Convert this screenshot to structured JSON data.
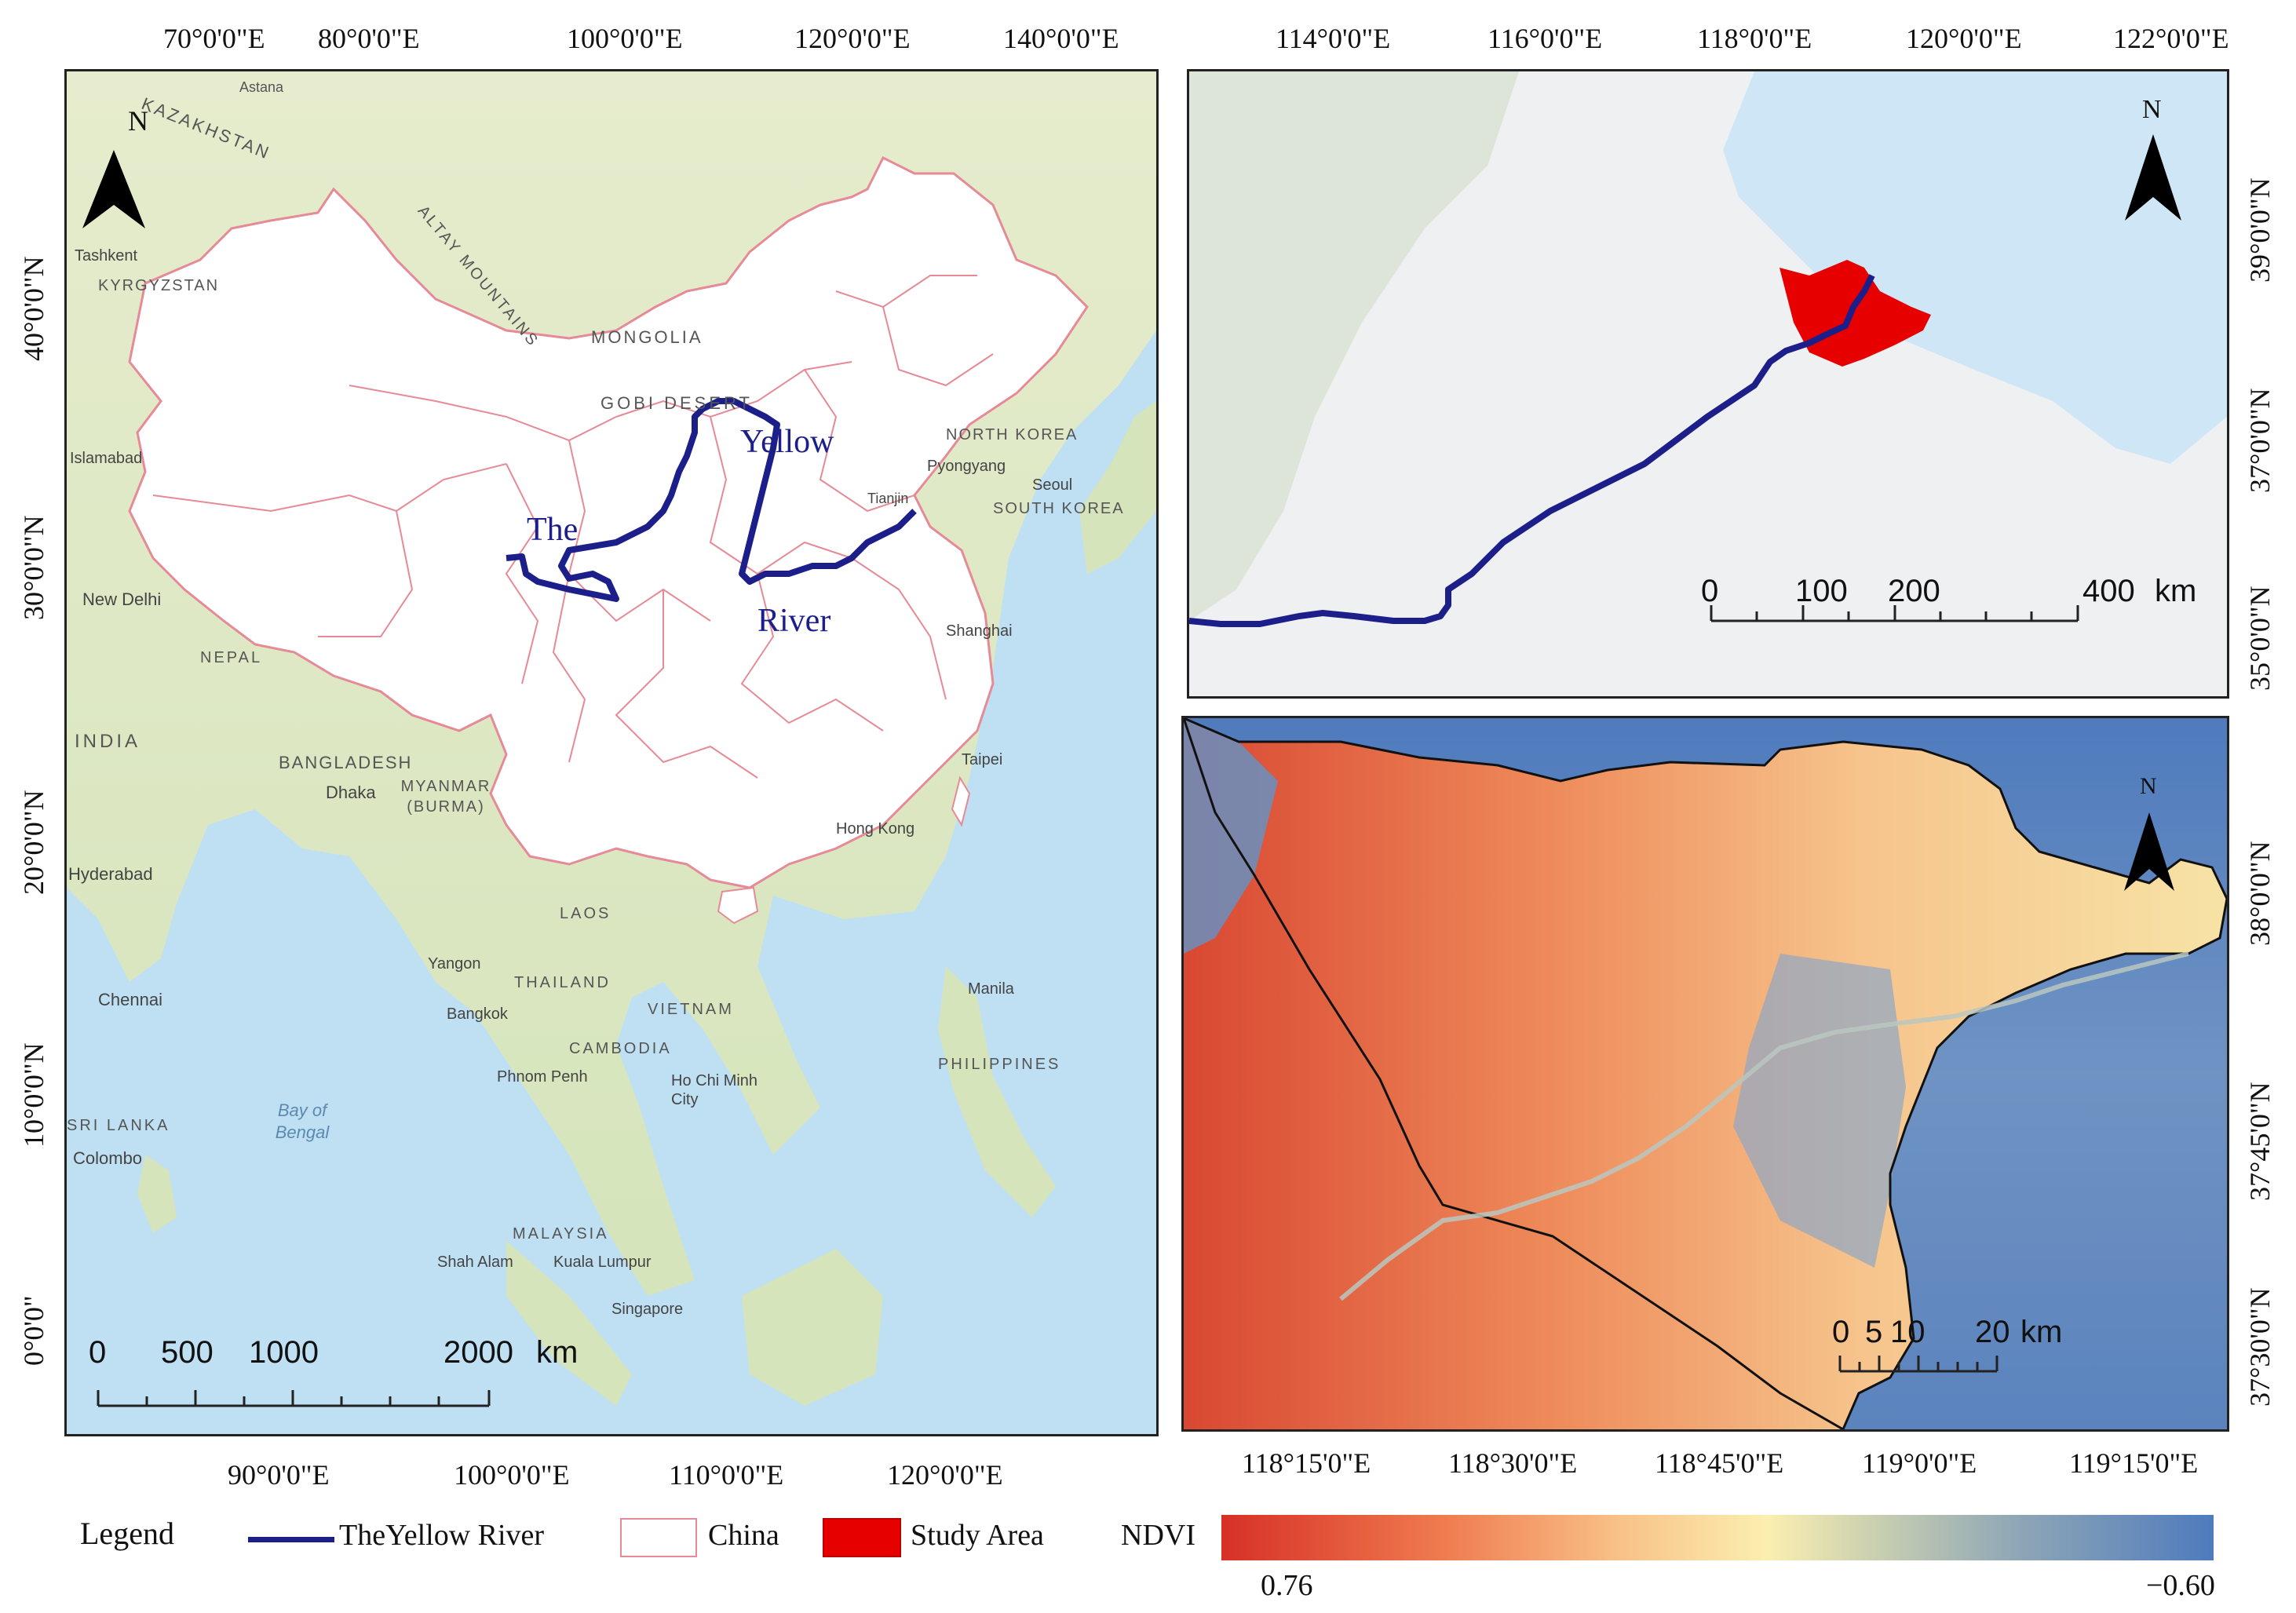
{
  "left_map": {
    "top_ticks": [
      "70°0'0\"E",
      "80°0'0\"E",
      "100°0'0\"E",
      "120°0'0\"E",
      "140°0'0\"E"
    ],
    "bottom_ticks": [
      "90°0'0\"E",
      "100°0'0\"E",
      "110°0'0\"E",
      "120°0'0\"E"
    ],
    "left_ticks": [
      "40°0'0\"N",
      "30°0'0\"N",
      "20°0'0\"N",
      "10°0'0\"N",
      "0°0'0\""
    ],
    "north": "N",
    "river_label": [
      "The",
      "Yellow",
      "River"
    ],
    "places": [
      "KAZAKHSTAN",
      "Astana",
      "Tashkent",
      "KYRGYZSTAN",
      "ALTAY MOUNTAINS",
      "MONGOLIA",
      "GOBI DESERT",
      "NORTH KOREA",
      "Pyongyang",
      "Seoul",
      "SOUTH KOREA",
      "Tianjin",
      "Islamabad",
      "New Delhi",
      "NEPAL",
      "INDIA",
      "Shanghai",
      "BANGLADESH",
      "Dhaka",
      "MYANMAR (BURMA)",
      "Hong Kong",
      "Taipei",
      "Hyderabad",
      "LAOS",
      "Yangon",
      "THAILAND",
      "Chennai",
      "Bangkok",
      "VIETNAM",
      "Manila",
      "CAMBODIA",
      "Phnom Penh",
      "Ho Chi Minh City",
      "PHILIPPINES",
      "Bay of Bengal",
      "SRI LANKA",
      "Colombo",
      "MALAYSIA",
      "Shah Alam",
      "Kuala Lumpur",
      "Singapore"
    ],
    "scale_labels": [
      "0",
      "500",
      "1000",
      "2000",
      "km"
    ]
  },
  "tr_map": {
    "top_ticks": [
      "114°0'0\"E",
      "116°0'0\"E",
      "118°0'0\"E",
      "120°0'0\"E",
      "122°0'0\"E"
    ],
    "right_ticks": [
      "39°0'0\"N",
      "37°0'0\"N",
      "35°0'0\"N"
    ],
    "north": "N",
    "scale_labels": [
      "0",
      "100",
      "200",
      "400",
      "km"
    ]
  },
  "br_map": {
    "bottom_ticks": [
      "118°15'0\"E",
      "118°30'0\"E",
      "118°45'0\"E",
      "119°0'0\"E",
      "119°15'0\"E"
    ],
    "right_ticks": [
      "38°0'0\"N",
      "37°45'0\"N",
      "37°30'0\"N"
    ],
    "north": "N",
    "scale_labels": [
      "0",
      "5",
      "10",
      "20",
      "km"
    ]
  },
  "legend": {
    "title": "Legend",
    "river": "TheYellow River",
    "china": "China",
    "study": "Study Area",
    "ndvi": "NDVI",
    "ndvi_max": "0.76",
    "ndvi_min": "−0.60"
  },
  "colors": {
    "river": "#1c1f8a",
    "china_border": "#e58a96",
    "study_area": "#e60000",
    "ndvi_high": "#d73027",
    "ndvi_low": "#4f7bbd"
  }
}
